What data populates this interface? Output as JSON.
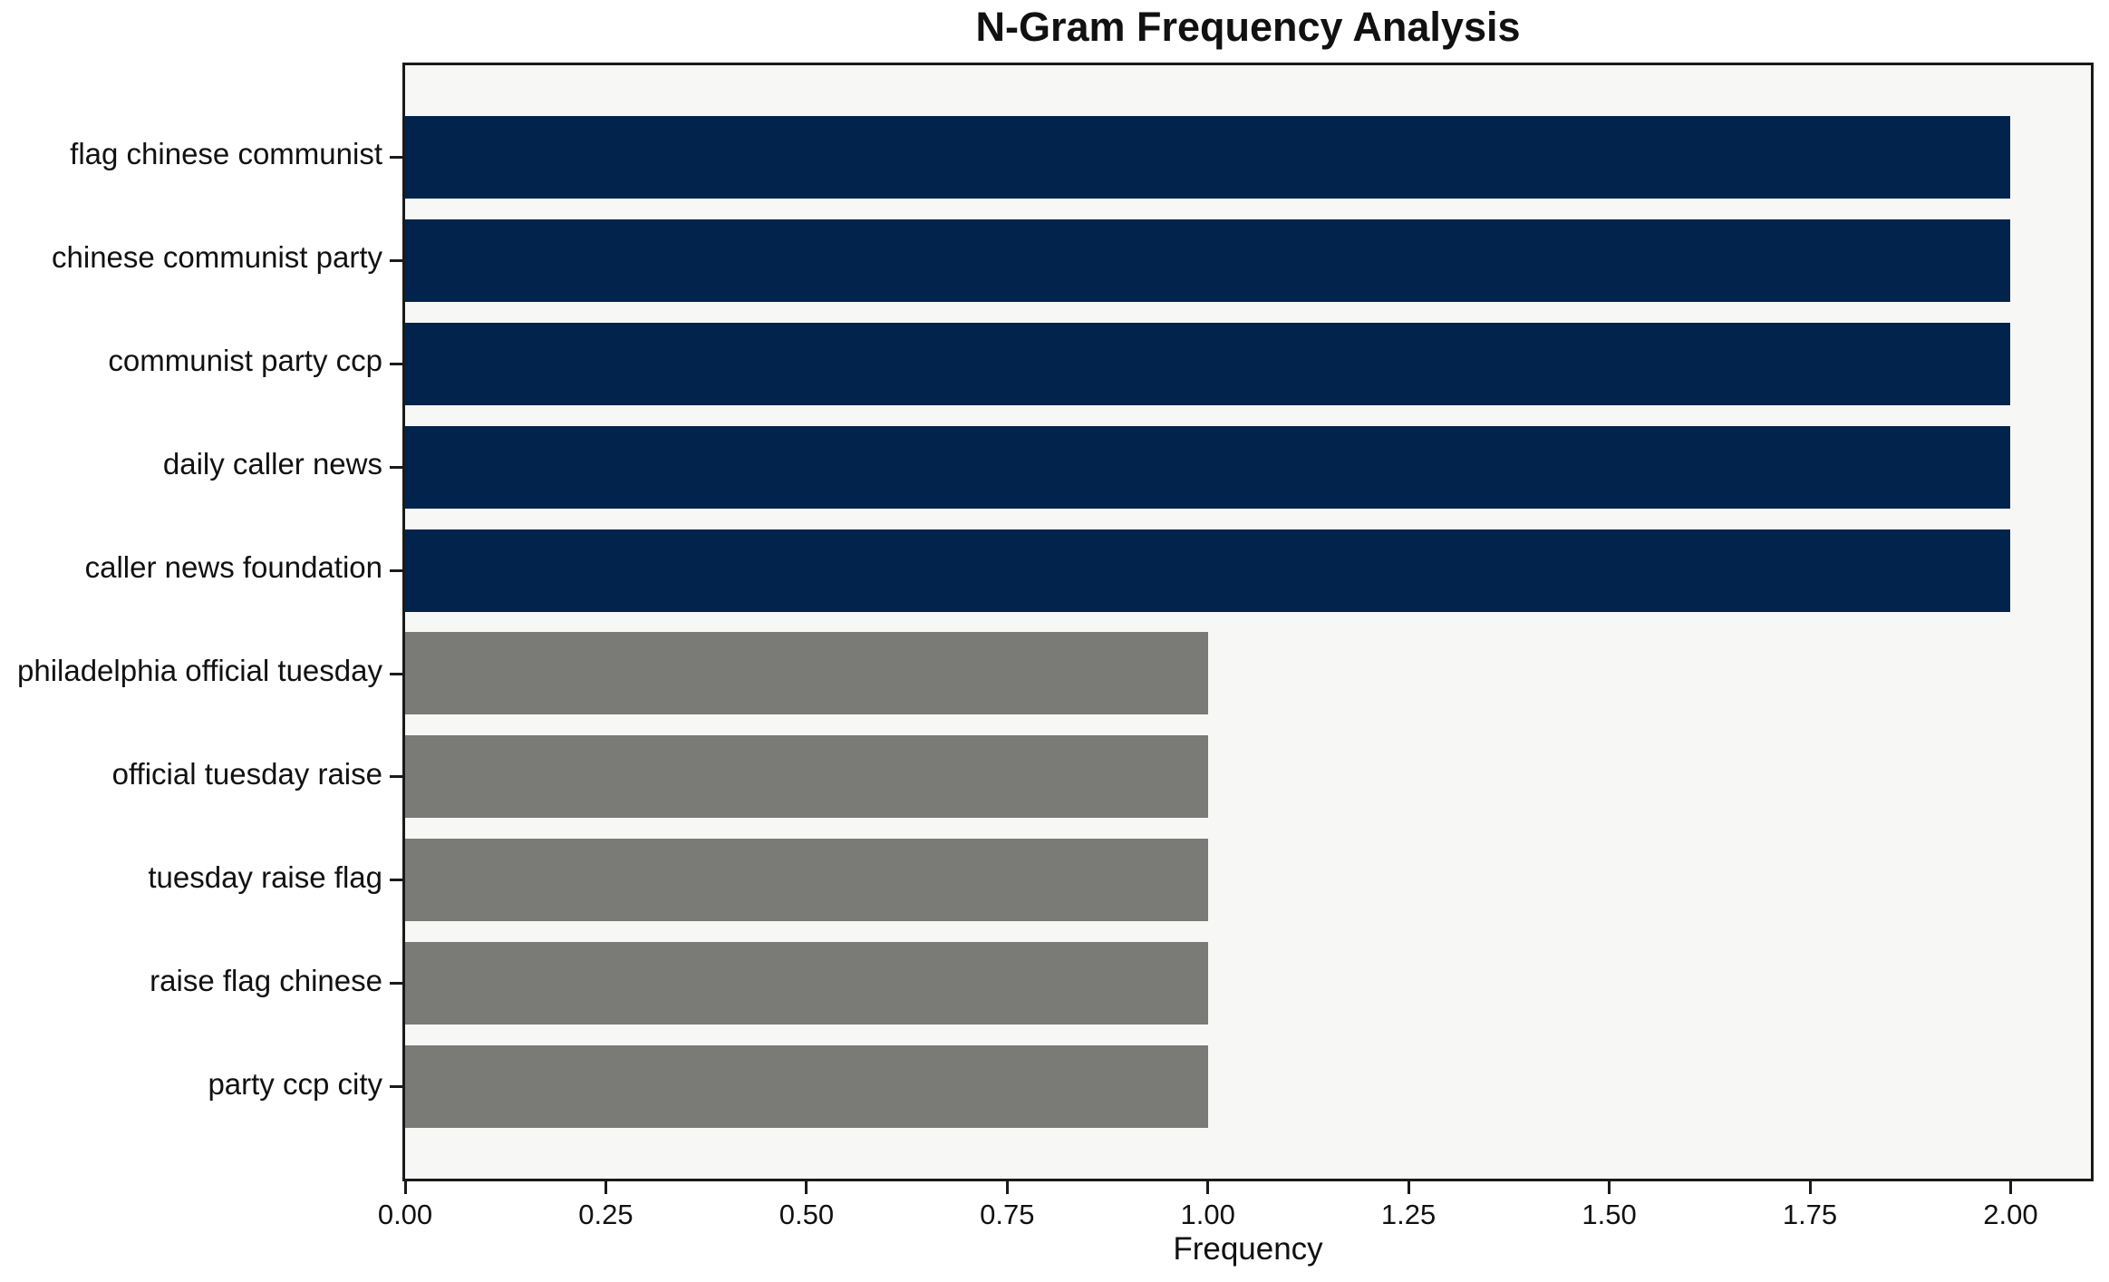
{
  "chart_data": {
    "type": "bar",
    "orientation": "horizontal",
    "title": "N-Gram Frequency Analysis",
    "xlabel": "Frequency",
    "ylabel": "",
    "categories": [
      "flag chinese communist",
      "chinese communist party",
      "communist party ccp",
      "daily caller news",
      "caller news foundation",
      "philadelphia official tuesday",
      "official tuesday raise",
      "tuesday raise flag",
      "raise flag chinese",
      "party ccp city"
    ],
    "values": [
      2,
      2,
      2,
      2,
      2,
      1,
      1,
      1,
      1,
      1
    ],
    "bar_colors": [
      "#02234c",
      "#02234c",
      "#02234c",
      "#02234c",
      "#02234c",
      "#7a7a76",
      "#7a7a76",
      "#7a7a76",
      "#7a7a76",
      "#7a7a76"
    ],
    "xlim": [
      0,
      2.1
    ],
    "xtick_values": [
      0,
      0.25,
      0.5,
      0.75,
      1.0,
      1.25,
      1.5,
      1.75,
      2.0
    ],
    "xtick_labels": [
      "0.00",
      "0.25",
      "0.50",
      "0.75",
      "1.00",
      "1.25",
      "1.50",
      "1.75",
      "2.00"
    ],
    "grid": false,
    "legend": null,
    "colors": {
      "navy_bar": "#02234c",
      "gray_bar": "#7a7a76",
      "plot_background": "#f7f7f6",
      "spine": "#1a1a1a",
      "text": "#111111",
      "figure_background": "#ffffff"
    }
  }
}
